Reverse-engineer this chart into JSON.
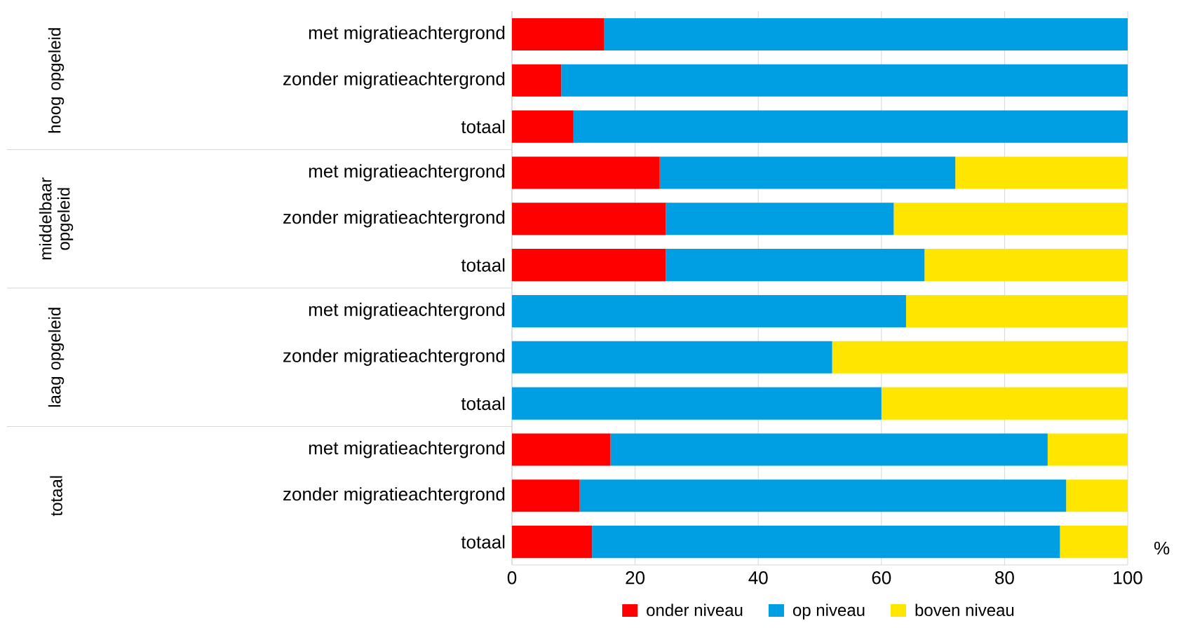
{
  "chart_data": {
    "type": "bar",
    "orientation": "horizontal",
    "stacked": true,
    "categories": [
      "met migratieachtergrond",
      "zonder migratieachtergrond",
      "totaal",
      "met migratieachtergrond",
      "zonder migratieachtergrond",
      "totaal",
      "met migratieachtergrond",
      "zonder migratieachtergrond",
      "totaal",
      "met migratieachtergrond",
      "zonder migratieachtergrond",
      "totaal"
    ],
    "series": [
      {
        "name": "onder niveau",
        "color": "#ff0000",
        "values": [
          15,
          8,
          10,
          24,
          25,
          25,
          0,
          0,
          0,
          16,
          11,
          13
        ]
      },
      {
        "name": "op niveau",
        "color": "#009fe3",
        "values": [
          85,
          92,
          90,
          48,
          37,
          42,
          64,
          52,
          60,
          71,
          79,
          76
        ]
      },
      {
        "name": "boven niveau",
        "color": "#ffe600",
        "values": [
          0,
          0,
          0,
          28,
          38,
          33,
          36,
          48,
          40,
          13,
          10,
          11
        ]
      }
    ],
    "xlabel": "%",
    "xlim": [
      0,
      100
    ],
    "xticks": [
      0,
      20,
      40,
      60,
      80,
      100
    ],
    "grid": "x",
    "legend": "bottom",
    "annotations": [
      "hoog opgeleid",
      "middelbaar opgeleid",
      "laag opgeleid",
      "totaal"
    ]
  }
}
